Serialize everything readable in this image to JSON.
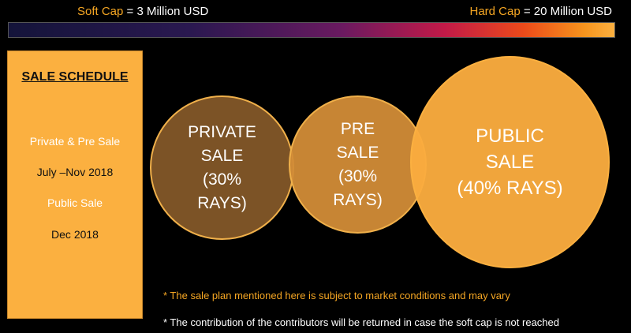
{
  "caps": {
    "soft_label": "Soft Cap",
    "soft_value": " = 3 Million USD",
    "hard_label": "Hard Cap",
    "hard_value": "  = 20 Million USD"
  },
  "schedule": {
    "title": "SALE SCHEDULE",
    "lines": [
      "Private & Pre Sale",
      "July –Nov 2018",
      "Public Sale",
      "Dec 2018"
    ]
  },
  "circles": {
    "private": "PRIVATE\nSALE\n(30%\nRAYS)",
    "pre": "PRE\nSALE\n(30%\nRAYS)",
    "public": "PUBLIC\nSALE\n(40% RAYS)"
  },
  "notes": [
    "* The sale plan mentioned here is subject to market conditions and may vary",
    "* The contribution of the contributors will be returned in case the soft cap is not reached"
  ],
  "colors": {
    "accent": "#f5a623",
    "panel": "#fbb040",
    "private_circle": "#7c5326",
    "pre_circle": "#d28c37",
    "public_circle": "#faac3e"
  }
}
